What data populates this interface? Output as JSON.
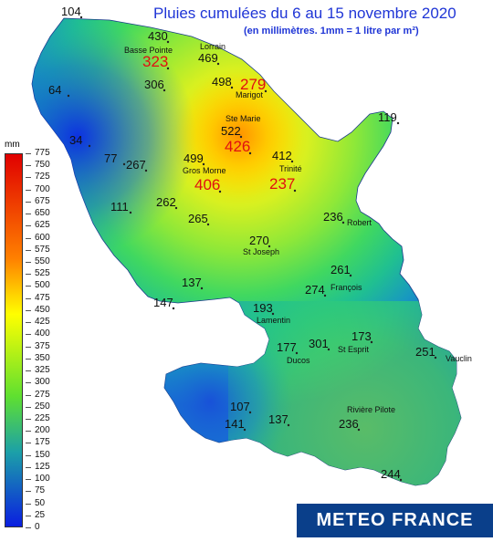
{
  "header": {
    "title": "Pluies cumulées du 6 au 15 novembre 2020",
    "subtitle": "(en millimètres. 1mm = 1 litre par m²)"
  },
  "legend": {
    "unit": "mm",
    "ticks": [
      "775",
      "750",
      "725",
      "700",
      "675",
      "650",
      "625",
      "600",
      "575",
      "550",
      "525",
      "500",
      "475",
      "450",
      "425",
      "400",
      "375",
      "350",
      "325",
      "300",
      "275",
      "250",
      "225",
      "200",
      "175",
      "150",
      "125",
      "100",
      "75",
      "50",
      "25",
      "0"
    ],
    "colors": {
      "low": "#0a1ee0",
      "mid_low": "#1ca0a8",
      "mid": "#5fe030",
      "mid_high": "#ffff00",
      "high": "#ff8000",
      "top": "#e00000"
    }
  },
  "places": [
    {
      "name": "Basse Pointe"
    },
    {
      "name": "Lorrain"
    },
    {
      "name": "Marigot"
    },
    {
      "name": "Ste Marie"
    },
    {
      "name": "Trinité"
    },
    {
      "name": "Gros Morne"
    },
    {
      "name": "Robert"
    },
    {
      "name": "St Joseph"
    },
    {
      "name": "François"
    },
    {
      "name": "Lamentin"
    },
    {
      "name": "Ducos"
    },
    {
      "name": "St Esprit"
    },
    {
      "name": "Vauclin"
    },
    {
      "name": "Rivière Pilote"
    }
  ],
  "values": [
    {
      "value": "104",
      "highlight": false
    },
    {
      "value": "430",
      "highlight": false
    },
    {
      "value": "323",
      "highlight": true
    },
    {
      "value": "469",
      "highlight": false
    },
    {
      "value": "306",
      "highlight": false
    },
    {
      "value": "498",
      "highlight": false
    },
    {
      "value": "279",
      "highlight": true
    },
    {
      "value": "64",
      "highlight": false
    },
    {
      "value": "522",
      "highlight": false
    },
    {
      "value": "426",
      "highlight": true
    },
    {
      "value": "412",
      "highlight": false
    },
    {
      "value": "119",
      "highlight": false
    },
    {
      "value": "34",
      "highlight": false
    },
    {
      "value": "77",
      "highlight": false
    },
    {
      "value": "267",
      "highlight": false
    },
    {
      "value": "499",
      "highlight": false
    },
    {
      "value": "406",
      "highlight": true
    },
    {
      "value": "237",
      "highlight": true
    },
    {
      "value": "111",
      "highlight": false
    },
    {
      "value": "262",
      "highlight": false
    },
    {
      "value": "265",
      "highlight": false
    },
    {
      "value": "236",
      "highlight": false
    },
    {
      "value": "270",
      "highlight": false
    },
    {
      "value": "261",
      "highlight": false
    },
    {
      "value": "274",
      "highlight": false
    },
    {
      "value": "137",
      "highlight": false
    },
    {
      "value": "147",
      "highlight": false
    },
    {
      "value": "193",
      "highlight": false
    },
    {
      "value": "173",
      "highlight": false
    },
    {
      "value": "177",
      "highlight": false
    },
    {
      "value": "301",
      "highlight": false
    },
    {
      "value": "251",
      "highlight": false
    },
    {
      "value": "107",
      "highlight": false
    },
    {
      "value": "141",
      "highlight": false
    },
    {
      "value": "137",
      "highlight": false
    },
    {
      "value": "236",
      "highlight": false
    },
    {
      "value": "244",
      "highlight": false
    }
  ],
  "logo": {
    "text": "METEO FRANCE"
  }
}
